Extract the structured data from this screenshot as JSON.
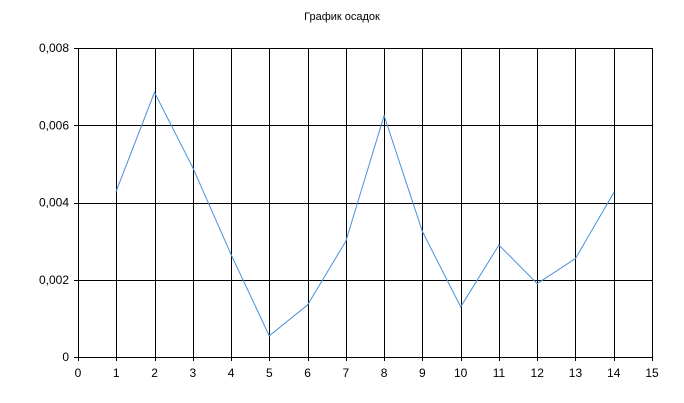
{
  "chart_data": {
    "type": "line",
    "title": "График осадок",
    "xlabel": "",
    "ylabel": "",
    "xlim": [
      0,
      15
    ],
    "ylim": [
      0,
      0.008
    ],
    "x_ticks": [
      0,
      1,
      2,
      3,
      4,
      5,
      6,
      7,
      8,
      9,
      10,
      11,
      12,
      13,
      14,
      15
    ],
    "x_tick_labels": [
      "0",
      "1",
      "2",
      "3",
      "4",
      "5",
      "6",
      "7",
      "8",
      "9",
      "10",
      "11",
      "12",
      "13",
      "14",
      "15"
    ],
    "y_ticks": [
      0,
      0.002,
      0.004,
      0.006,
      0.008
    ],
    "y_tick_labels": [
      "0",
      "0,002",
      "0,004",
      "0,006",
      "0,008"
    ],
    "grid": true,
    "legend": "none",
    "series": [
      {
        "color": "#4a90d9",
        "x": [
          1,
          2,
          3,
          4,
          5,
          6,
          7,
          8,
          9,
          10,
          11,
          12,
          13,
          14
        ],
        "y": [
          0.0043,
          0.00685,
          0.0049,
          0.00265,
          0.00055,
          0.00135,
          0.003,
          0.00625,
          0.00325,
          0.0013,
          0.0029,
          0.0019,
          0.00255,
          0.00425
        ]
      }
    ]
  }
}
